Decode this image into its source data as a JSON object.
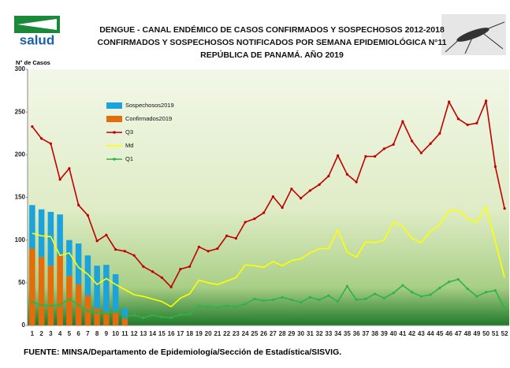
{
  "chart_data": {
    "type": "combo",
    "title": "DENGUE - CANAL ENDÉMICO DE CASOS CONFIRMADOS Y SOSPECHOSOS 2012-2018",
    "subtitle": "CONFIRMADOS Y SOSPECHOSOS NOTIFICADOS POR SEMANA EPIDEMIOLÓGICA N°11",
    "subtitle2": "REPÚBLICA DE PANAMÁ. AÑO 2019",
    "logo_text": "salud",
    "y_label": "N° de Casos",
    "source": "FUENTE: MINSA/Departamento de Epidemiología/Sección de Estadística/SISVIG.",
    "categories": [
      1,
      2,
      3,
      4,
      5,
      6,
      7,
      8,
      9,
      10,
      11,
      12,
      13,
      14,
      15,
      16,
      17,
      18,
      19,
      20,
      21,
      22,
      23,
      24,
      25,
      26,
      27,
      28,
      29,
      30,
      31,
      32,
      33,
      34,
      35,
      36,
      37,
      38,
      39,
      40,
      41,
      42,
      43,
      44,
      45,
      46,
      47,
      48,
      49,
      50,
      51,
      52
    ],
    "series": [
      {
        "name": "Sospechosos2019",
        "type": "bar",
        "color": "#1ca3dc",
        "values": [
          51,
          56,
          63,
          48,
          42,
          48,
          47,
          50,
          55,
          45,
          12,
          null,
          null,
          null,
          null,
          null,
          null,
          null,
          null,
          null,
          null,
          null,
          null,
          null,
          null,
          null,
          null,
          null,
          null,
          null,
          null,
          null,
          null,
          null,
          null,
          null,
          null,
          null,
          null,
          null,
          null,
          null,
          null,
          null,
          null,
          null,
          null,
          null,
          null,
          null,
          null,
          null
        ]
      },
      {
        "name": "Confirmados2019",
        "type": "bar",
        "color": "#e46c0a",
        "values": [
          90,
          80,
          70,
          82,
          58,
          48,
          35,
          20,
          16,
          15,
          8,
          null,
          null,
          null,
          null,
          null,
          null,
          null,
          null,
          null,
          null,
          null,
          null,
          null,
          null,
          null,
          null,
          null,
          null,
          null,
          null,
          null,
          null,
          null,
          null,
          null,
          null,
          null,
          null,
          null,
          null,
          null,
          null,
          null,
          null,
          null,
          null,
          null,
          null,
          null,
          null,
          null
        ]
      },
      {
        "name": "Q3",
        "type": "line",
        "color": "#c00000",
        "marker": true,
        "values": [
          233,
          219,
          213,
          171,
          184,
          141,
          129,
          99,
          106,
          89,
          87,
          82,
          69,
          63,
          56,
          45,
          66,
          69,
          92,
          87,
          90,
          105,
          102,
          121,
          125,
          132,
          151,
          138,
          160,
          149,
          158,
          165,
          175,
          199,
          177,
          168,
          198,
          198,
          207,
          212,
          239,
          216,
          202,
          213,
          225,
          262,
          242,
          235,
          237,
          263,
          186,
          137
        ]
      },
      {
        "name": "Md",
        "type": "line",
        "color": "#ffff00",
        "marker": false,
        "values": [
          108,
          105,
          104,
          82,
          85,
          68,
          60,
          48,
          55,
          48,
          42,
          36,
          34,
          31,
          28,
          22,
          32,
          37,
          53,
          50,
          48,
          52,
          56,
          71,
          70,
          68,
          75,
          70,
          76,
          78,
          85,
          90,
          90,
          112,
          86,
          80,
          98,
          97,
          100,
          121,
          116,
          102,
          97,
          110,
          118,
          134,
          135,
          125,
          121,
          139,
          98,
          56
        ]
      },
      {
        "name": "Q1",
        "type": "line",
        "color": "#2db34a",
        "marker": true,
        "values": [
          27,
          24,
          23,
          24,
          31,
          24,
          17,
          15,
          14,
          17,
          10,
          12,
          9,
          12,
          10,
          9,
          13,
          13,
          23,
          22,
          21,
          23,
          22,
          25,
          31,
          29,
          30,
          33,
          30,
          27,
          33,
          30,
          35,
          28,
          46,
          30,
          31,
          37,
          32,
          38,
          47,
          39,
          34,
          36,
          44,
          51,
          54,
          43,
          34,
          39,
          41,
          20
        ]
      }
    ],
    "ylim": [
      0,
      300
    ],
    "yticks": [
      0,
      50,
      100,
      150,
      200,
      250,
      300
    ],
    "grid": false,
    "legend": "upper left"
  }
}
